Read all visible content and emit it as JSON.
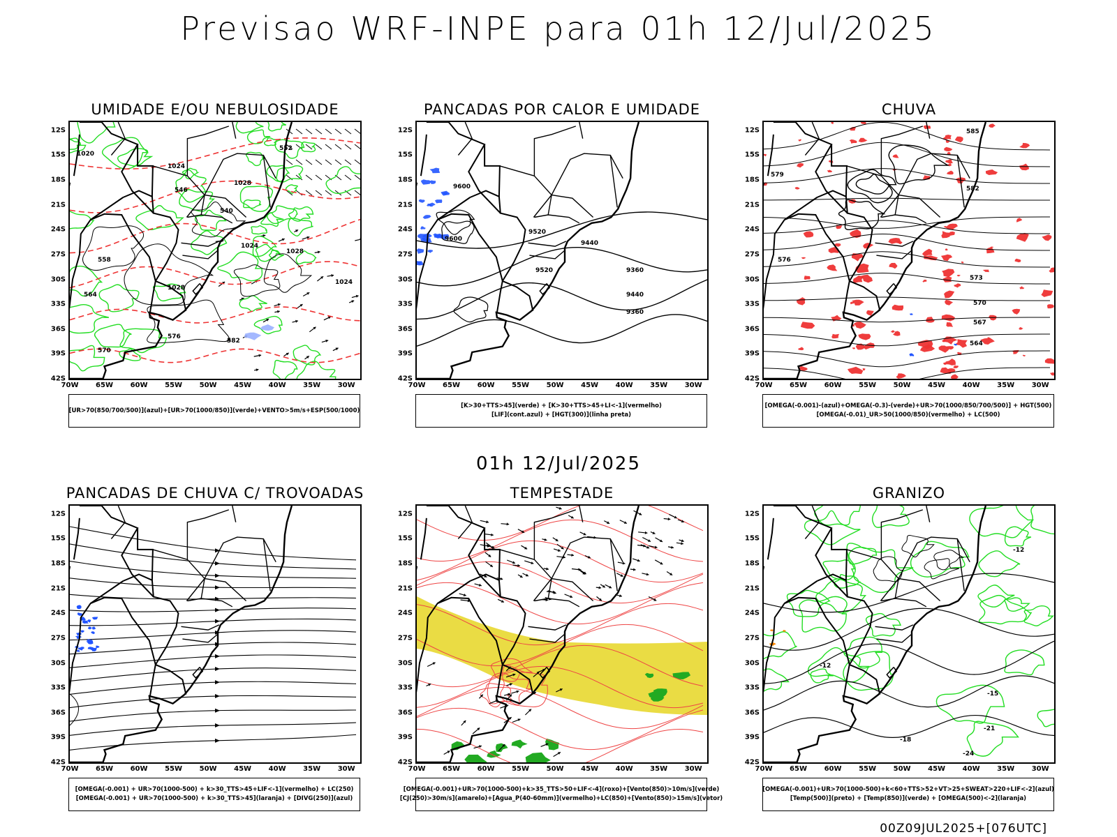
{
  "title": "Previsao WRF-INPE  para 01h 12/Jul/2025",
  "subtitle": "01h 12/Jul/2025",
  "footer": "00Z09JUL2025+[076UTC]",
  "axes": {
    "lat": [
      "12S",
      "15S",
      "18S",
      "21S",
      "24S",
      "27S",
      "30S",
      "33S",
      "36S",
      "39S",
      "42S"
    ],
    "lon": [
      "70W",
      "65W",
      "60W",
      "55W",
      "50W",
      "45W",
      "40W",
      "35W",
      "30W"
    ]
  },
  "colors": {
    "contour_black": "#000000",
    "humidity_green": "#22dd22",
    "humidity_blue": "#2255ff",
    "red_dashed": "#ee3333",
    "yellow_jet": "#e8d830",
    "orange": "#ff8800"
  },
  "panels": [
    {
      "title": "UMIDADE E/OU NEBULOSIDADE",
      "legend": [
        "[UR>70(850/700/500)](azul)+[UR>70(1000/850)](verde)+VENTO>5m/s+ESP(500/1000)"
      ],
      "contour_labels": [
        "1020",
        "1024",
        "1028",
        "1024",
        "1028",
        "1028",
        "1024",
        "564",
        "570",
        "576",
        "582",
        "552",
        "546",
        "540",
        "558"
      ]
    },
    {
      "title": "PANCADAS POR CALOR E UMIDADE",
      "legend": [
        "[K>30+TTS>45](verde) + [K>30+TTS>45+LI<-1](vermelho)",
        "[LIF](cont.azul) + [HGT(300)](linha preta)"
      ],
      "contour_labels": [
        "9600",
        "9520",
        "9440",
        "9360",
        "9600",
        "9520",
        "9440",
        "9360"
      ]
    },
    {
      "title": "CHUVA",
      "legend": [
        "[OMEGA(-0.001)-(azul)+OMEGA(-0.3)-(verde)+UR>70(1000/850/700/500)] + HGT(500)",
        "[OMEGA(-0.01)_UR>50(1000/850)(vermelho) + LC(500)"
      ],
      "contour_labels": [
        "585",
        "582",
        "579",
        "576",
        "573",
        "570",
        "567",
        "564"
      ]
    },
    {
      "title": "PANCADAS DE CHUVA C/ TROVOADAS",
      "legend": [
        "[OMEGA(-0.001) + UR>70(1000-500) + k>30_TTS>45+LIF<-1](vermelho) + LC(250)",
        "[OMEGA(-0.001) + UR>70(1000-500) + k>30_TTS>45](laranja) + [DIVG(250)](azul)"
      ],
      "contour_labels": []
    },
    {
      "title": "TEMPESTADE",
      "legend": [
        "[OMEGA(-0.001)+UR>70(1000-500)+k>35_TTS>50+LIF<-4](roxo)+[Vento(850)>10m/s](verde)",
        "[CJ(250)>30m/s](amarelo)+[Agua_P(40-60mm)](vermelho)+LC(850)+[Vento(850)>15m/s](vetor)"
      ],
      "contour_labels": []
    },
    {
      "title": "GRANIZO",
      "legend": [
        "[OMEGA(-0.001)+UR>70(1000-500)+k<60+TTS>52+VT>25+SWEAT>220+LIF<-2](azul)",
        "[Temp(500)](preto) + [Temp(850)](verde) + [OMEGA(500)<-2](laranja)"
      ],
      "contour_labels": [
        "-12",
        "-15",
        "-18",
        "-21",
        "-24",
        "-12"
      ]
    }
  ]
}
